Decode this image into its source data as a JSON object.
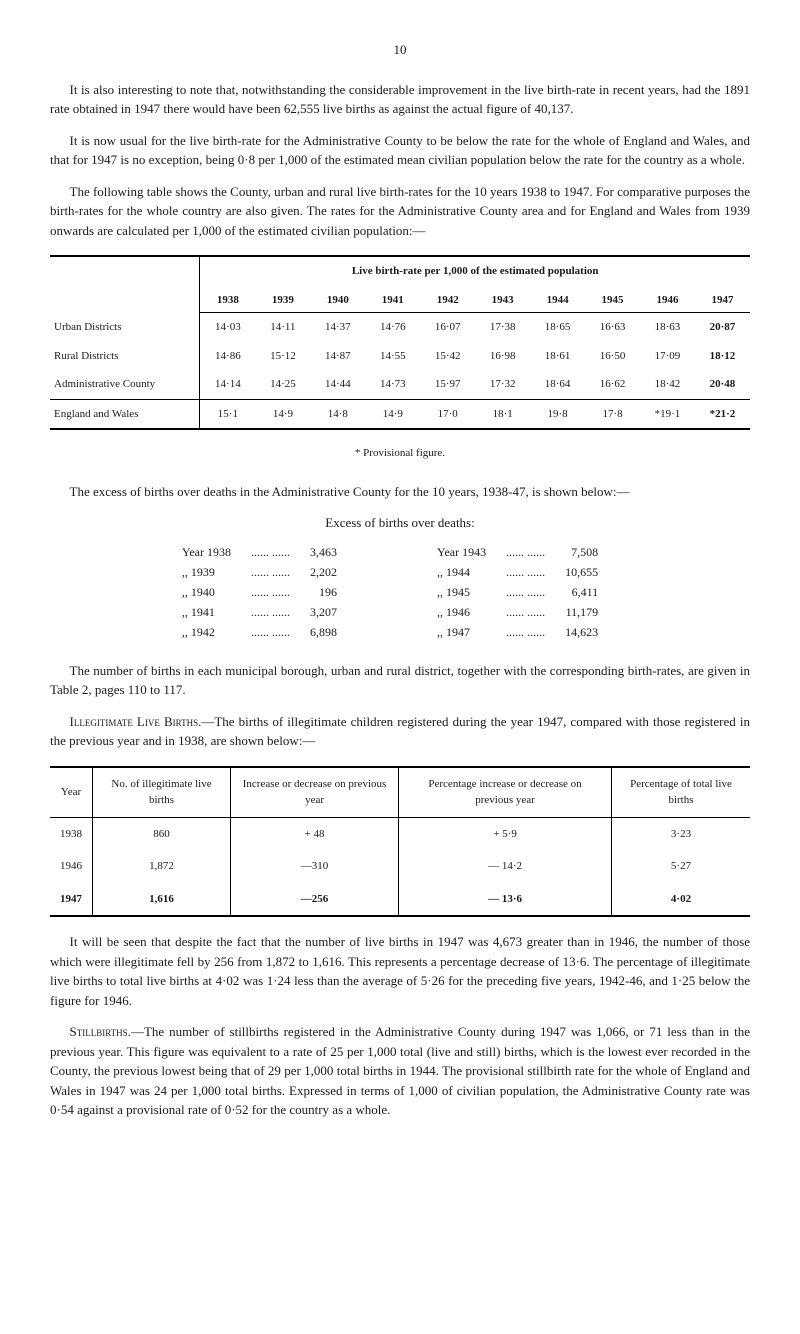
{
  "page_number": "10",
  "para1": "It is also interesting to note that, notwithstanding the considerable improvement in the live birth-rate in recent years, had the 1891 rate obtained in 1947 there would have been 62,555 live births as against the actual figure of 40,137.",
  "para2": "It is now usual for the live birth-rate for the Administrative County to be below the rate for the whole of England and Wales, and that for 1947 is no exception, being 0·8 per 1,000 of the estimated mean civilian population below the rate for the country as a whole.",
  "para3": "The following table shows the County, urban and rural live birth-rates for the 10 years 1938 to 1947. For comparative purposes the birth-rates for the whole country are also given. The rates for the Administrative County area and for England and Wales from 1939 onwards are calculated per 1,000 of the estimated civilian population:—",
  "table1": {
    "header_span": "Live birth-rate per 1,000 of the estimated population",
    "years": [
      "1938",
      "1939",
      "1940",
      "1941",
      "1942",
      "1943",
      "1944",
      "1945",
      "1946",
      "1947"
    ],
    "rows": [
      {
        "label": "Urban Districts",
        "values": [
          "14·03",
          "14·11",
          "14·37",
          "14·76",
          "16·07",
          "17·38",
          "18·65",
          "16·63",
          "18·63",
          "20·87"
        ]
      },
      {
        "label": "Rural Districts",
        "values": [
          "14·86",
          "15·12",
          "14·87",
          "14·55",
          "15·42",
          "16·98",
          "18·61",
          "16·50",
          "17·09",
          "18·12"
        ]
      },
      {
        "label": "Administrative County",
        "values": [
          "14·14",
          "14·25",
          "14·44",
          "14·73",
          "15·97",
          "17·32",
          "18·64",
          "16·62",
          "18·42",
          "20·48"
        ]
      },
      {
        "label": "England and Wales",
        "values": [
          "15·1",
          "14·9",
          "14·8",
          "14·9",
          "17·0",
          "18·1",
          "19·8",
          "17·8",
          "*19·1",
          "*21·2"
        ]
      }
    ]
  },
  "footnote1": "* Provisional figure.",
  "para4": "The excess of births over deaths in the Administrative County for the 10 years, 1938-47, is shown below:—",
  "excess_heading": "Excess of births over deaths:",
  "excess_left": [
    {
      "year_label": "Year 1938",
      "dots": "......  ......",
      "value": "3,463"
    },
    {
      "year_label": ",,   1939",
      "dots": "......  ......",
      "value": "2,202"
    },
    {
      "year_label": ",,   1940",
      "dots": "......  ......",
      "value": "196"
    },
    {
      "year_label": ",,   1941",
      "dots": "......  ......",
      "value": "3,207"
    },
    {
      "year_label": ",,   1942",
      "dots": "......  ......",
      "value": "6,898"
    }
  ],
  "excess_right": [
    {
      "year_label": "Year 1943",
      "dots": "......  ......",
      "value": "7,508"
    },
    {
      "year_label": ",,   1944",
      "dots": "......  ......",
      "value": "10,655"
    },
    {
      "year_label": ",,   1945",
      "dots": "......  ......",
      "value": "6,411"
    },
    {
      "year_label": ",,   1946",
      "dots": "......  ......",
      "value": "11,179"
    },
    {
      "year_label": ",,   1947",
      "dots": "......  ......",
      "value": "14,623"
    }
  ],
  "para5": "The number of births in each municipal borough, urban and rural district, together with the corresponding birth-rates, are given in Table 2, pages 110 to 117.",
  "para6_lead": "Illegitimate Live Births.",
  "para6": "—The births of illegitimate children registered during the year 1947, compared with those registered in the previous year and in 1938, are shown below:—",
  "table2": {
    "headers": [
      "Year",
      "No. of illegitimate live births",
      "Increase or decrease on previous year",
      "Percentage increase or decrease on previous year",
      "Percentage of total live births"
    ],
    "rows": [
      {
        "year": "1938",
        "num": "860",
        "inc": "+ 48",
        "pct": "+ 5·9",
        "total": "3·23"
      },
      {
        "year": "1946",
        "num": "1,872",
        "inc": "—310",
        "pct": "— 14·2",
        "total": "5·27"
      },
      {
        "year": "1947",
        "num": "1,616",
        "inc": "—256",
        "pct": "— 13·6",
        "total": "4·02",
        "bold": true
      }
    ]
  },
  "para7": "It will be seen that despite the fact that the number of live births in 1947 was 4,673 greater than in 1946, the number of those which were illegitimate fell by 256 from 1,872 to 1,616. This represents a percentage decrease of 13·6. The percentage of illegitimate live births to total live births at 4·02 was 1·24 less than the average of 5·26 for the preceding five years, 1942-46, and 1·25 below the figure for 1946.",
  "para8_lead": "Stillbirths.",
  "para8": "—The number of stillbirths registered in the Administrative County during 1947 was 1,066, or 71 less than in the previous year. This figure was equivalent to a rate of 25 per 1,000 total (live and still) births, which is the lowest ever recorded in the County, the previous lowest being that of 29 per 1,000 total births in 1944. The provisional stillbirth rate for the whole of England and Wales in 1947 was 24 per 1,000 total births. Expressed in terms of 1,000 of civilian population, the Administrative County rate was 0·54 against a provisional rate of 0·52 for the country as a whole."
}
